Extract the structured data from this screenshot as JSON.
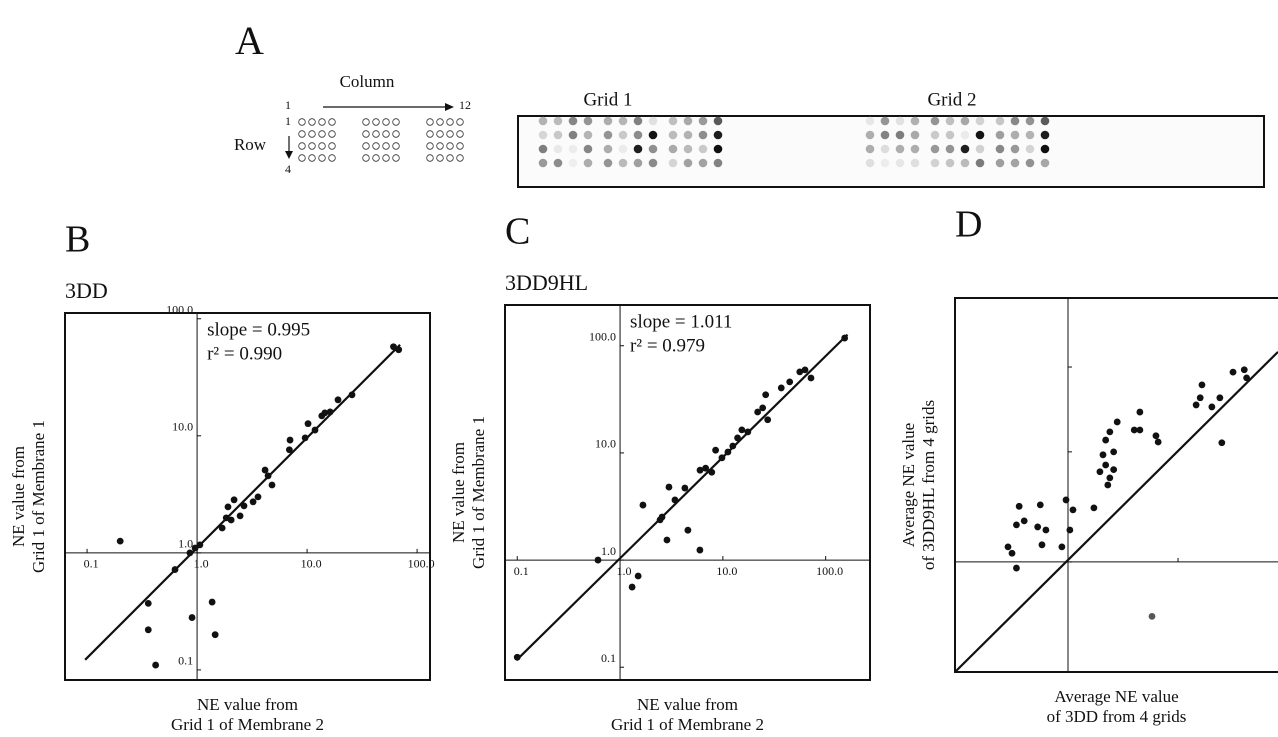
{
  "panel_a": {
    "letter": "A",
    "column_label": "Column",
    "col_start": "1",
    "col_end": "12",
    "row_label": "Row",
    "row_start": "1",
    "row_end": "4",
    "grid_labels": [
      "Grid 1",
      "Grid 2"
    ]
  },
  "chart_data": [
    {
      "type": "scatter",
      "letter": "B",
      "title": "3DD",
      "annotations": [
        "slope = 0.995",
        "r² = 0.990"
      ],
      "xlabel": [
        "NE value from",
        "Grid 1 of Membrane 2"
      ],
      "ylabel": [
        "NE value from",
        "Grid 1 of Membrane 1"
      ],
      "xscale": "log",
      "yscale": "log",
      "axes_at": 1,
      "tick_labels": true,
      "xlim": [
        0.063,
        131
      ],
      "ylim": [
        0.082,
        112
      ],
      "xticks": [
        0.1,
        {
          "value": 1,
          "label": "1.0"
        },
        {
          "value": 10,
          "label": "10.0"
        },
        {
          "value": 100,
          "label": "100.0"
        }
      ],
      "yticks": [
        0.1,
        {
          "value": 1,
          "label": "1.0"
        },
        {
          "value": 10,
          "label": "10.0"
        },
        {
          "value": 100,
          "label": "100.0"
        }
      ],
      "series": [
        {
          "color": "#111111",
          "x": [
            0.2,
            0.63,
            0.86,
            0.96,
            1.06,
            0.36,
            0.36,
            0.42,
            0.9,
            1.37,
            1.46,
            1.69,
            1.84,
            2.04,
            2.17,
            1.91,
            2.46,
            2.67,
            3.23,
            3.58,
            4.15,
            4.42,
            4.8,
            6.9,
            7.0,
            9.6,
            10.2,
            11.8,
            13.6,
            14.5,
            16.2,
            19.1,
            25.6,
            61,
            68
          ],
          "values": [
            1.26,
            0.72,
            1.0,
            1.1,
            1.17,
            0.37,
            0.22,
            0.11,
            0.28,
            0.38,
            0.2,
            1.63,
            1.99,
            1.91,
            2.84,
            2.47,
            2.07,
            2.52,
            2.73,
            3.01,
            5.1,
            4.55,
            3.8,
            7.6,
            9.2,
            9.6,
            12.7,
            11.2,
            14.8,
            15.7,
            16.0,
            20.3,
            22.4,
            57.7,
            54.4
          ]
        }
      ],
      "fit_line": {
        "x": [
          0.096,
          70
        ],
        "values": [
          0.122,
          60
        ]
      }
    },
    {
      "type": "scatter",
      "letter": "C",
      "title": "3DD9HL",
      "annotations": [
        "slope = 1.011",
        "r² = 0.979"
      ],
      "xlabel": [
        "NE value from",
        "Grid 1 of Membrane 2"
      ],
      "ylabel": [
        "NE value from",
        "Grid 1 of Membrane 1"
      ],
      "xscale": "log",
      "yscale": "log",
      "axes_at": 1,
      "tick_labels": true,
      "xlim": [
        0.076,
        270
      ],
      "ylim": [
        0.076,
        240
      ],
      "xticks": [
        0.1,
        {
          "value": 1,
          "label": "1.0"
        },
        {
          "value": 10,
          "label": "10.0"
        },
        {
          "value": 100,
          "label": "100.0"
        }
      ],
      "yticks": [
        0.1,
        {
          "value": 1,
          "label": "1.0"
        },
        {
          "value": 10,
          "label": "10.0"
        },
        {
          "value": 100,
          "label": "100.0"
        }
      ],
      "series": [
        {
          "color": "#111111",
          "x": [
            0.1,
            0.61,
            1.31,
            1.5,
            1.67,
            2.45,
            2.56,
            2.86,
            2.99,
            3.42,
            4.57,
            5.98,
            4.27,
            6.0,
            6.8,
            7.8,
            8.5,
            9.8,
            11.2,
            12.5,
            13.9,
            15.3,
            17.5,
            21.8,
            24.4,
            26.1,
            27.3,
            37,
            44.7,
            56,
            63,
            72,
            153
          ],
          "values": [
            0.124,
            1.0,
            0.56,
            0.71,
            3.26,
            2.37,
            2.52,
            1.54,
            4.8,
            3.64,
            1.9,
            1.24,
            4.7,
            6.9,
            7.2,
            6.6,
            10.6,
            9.0,
            10.2,
            11.6,
            13.8,
            16.4,
            15.7,
            24.1,
            26.3,
            34.9,
            20.4,
            40.4,
            46,
            57,
            59.5,
            50,
            118
          ]
        }
      ],
      "fit_line": {
        "x": [
          0.098,
          163
        ],
        "values": [
          0.116,
          127
        ]
      }
    },
    {
      "type": "scatter",
      "letter": "D",
      "xlabel": [
        "Average NE value",
        "of 3DD from 4 grids"
      ],
      "ylabel": [
        "Average NE value",
        "of 3DD9HL from 4 grids"
      ],
      "xscale": "log",
      "yscale": "log",
      "axes_at": 1,
      "tick_labels": false,
      "xlim": [
        0.094,
        81
      ],
      "ylim": [
        0.1,
        250
      ],
      "xticks": [
        1,
        10
      ],
      "yticks": [
        1,
        10,
        59
      ],
      "series": [
        {
          "color": "#111111",
          "x": [
            0.285,
            0.31,
            0.34,
            0.34,
            0.36,
            0.4,
            0.53,
            0.56,
            0.58,
            0.63,
            0.88,
            0.96,
            1.04,
            1.11,
            1.72,
            1.95,
            2.08,
            2.2,
            2.2,
            2.4,
            2.3,
            2.4,
            2.6,
            2.6,
            2.8,
            4.0,
            4.5,
            4.5,
            6.3,
            6.6,
            14.6,
            15.9,
            16.5,
            20.3,
            24,
            25,
            31.6,
            40,
            42
          ],
          "values": [
            1.37,
            1.2,
            0.88,
            2.17,
            3.2,
            2.36,
            2.08,
            3.3,
            1.43,
            1.95,
            1.37,
            3.66,
            1.95,
            2.97,
            3.1,
            6.6,
            9.4,
            7.6,
            12.8,
            15.2,
            5.0,
            5.8,
            6.9,
            10,
            18.7,
            15.8,
            15.8,
            23,
            14,
            12.3,
            26.7,
            31,
            40.6,
            25.6,
            31,
            12.1,
            53,
            55.7,
            47
          ]
        },
        {
          "color": "#555555",
          "x": [
            5.8
          ],
          "values": [
            0.32
          ]
        }
      ],
      "fit_line": {
        "x": [
          0.094,
          81
        ],
        "values": [
          0.1,
          81
        ]
      }
    }
  ]
}
